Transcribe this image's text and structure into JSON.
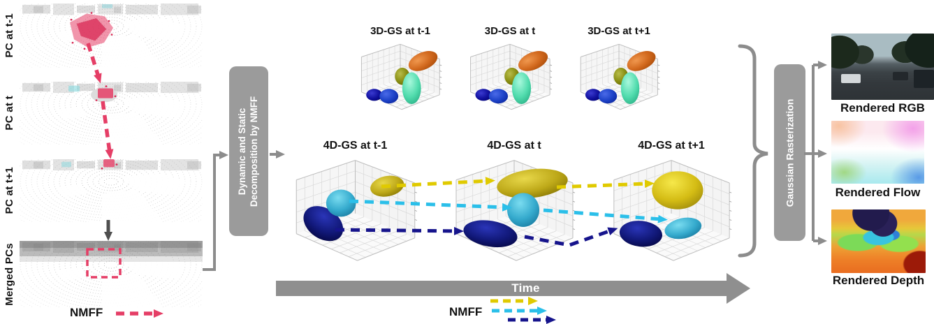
{
  "left": {
    "panels": [
      {
        "label": "PC at t-1"
      },
      {
        "label": "PC at t"
      },
      {
        "label": "PC at t+1"
      },
      {
        "label": "Merged PCs"
      }
    ],
    "legend_label": "NMFF"
  },
  "decomposition_box": {
    "line1": "Dynamic and Static",
    "line2": "Decomposition by NMFF"
  },
  "plots_3d": [
    {
      "title": "3D-GS at t-1",
      "gaussians": [
        "orange",
        "olive",
        "spring-green",
        "navy",
        "blue"
      ]
    },
    {
      "title": "3D-GS at t",
      "gaussians": [
        "orange",
        "olive",
        "spring-green",
        "navy",
        "blue"
      ]
    },
    {
      "title": "3D-GS at t+1",
      "gaussians": [
        "orange",
        "olive",
        "spring-green",
        "navy",
        "blue"
      ]
    }
  ],
  "plots_4d": [
    {
      "title": "4D-GS at t-1",
      "gaussians": [
        "yellow",
        "cyan",
        "navy"
      ]
    },
    {
      "title": "4D-GS at t",
      "gaussians": [
        "yellow",
        "cyan",
        "navy"
      ]
    },
    {
      "title": "4D-GS at t+1",
      "gaussians": [
        "yellow",
        "cyan",
        "navy"
      ]
    }
  ],
  "timeline": {
    "label": "Time"
  },
  "center_legend": {
    "label": "NMFF"
  },
  "rasterization_box": {
    "label": "Gaussian Rasterization"
  },
  "outputs": [
    {
      "label": "Rendered RGB"
    },
    {
      "label": "Rendered Flow"
    },
    {
      "label": "Rendered Depth"
    }
  ],
  "colors": {
    "nmff_pink": "#e53e66",
    "flow_arrow_yellow": "#e0ca00",
    "flow_arrow_cyan": "#2bbfe9",
    "flow_arrow_navy": "#16148c",
    "box_gray": "#9b9b9b",
    "arrow_gray": "#8c8c8c",
    "time_gray": "#8f8f8f"
  }
}
